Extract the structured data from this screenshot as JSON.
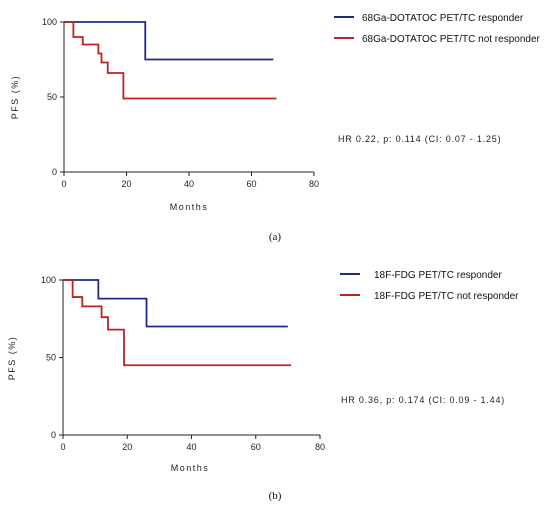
{
  "chart_data": [
    {
      "type": "line",
      "panel_label": "(a)",
      "xlabel": "Months",
      "ylabel": "PFS (%)",
      "xlim": [
        0,
        80
      ],
      "ylim": [
        0,
        100
      ],
      "xticks": [
        0,
        20,
        40,
        60,
        80
      ],
      "yticks": [
        0,
        50,
        100
      ],
      "annotation": "HR 0.22, p: 0.114 (CI: 0.07 - 1.25)",
      "legend_position": "top-right",
      "series": [
        {
          "name": "68Ga-DOTATOC PET/TC responder",
          "color": "#1f2a8a",
          "steps": [
            [
              0,
              100
            ],
            [
              26,
              100
            ],
            [
              26,
              75
            ],
            [
              67,
              75
            ]
          ]
        },
        {
          "name": "68Ga-DOTATOC PET/TC not responder",
          "color": "#c0221f",
          "steps": [
            [
              0,
              100
            ],
            [
              3,
              100
            ],
            [
              3,
              90
            ],
            [
              6,
              90
            ],
            [
              6,
              85
            ],
            [
              11,
              85
            ],
            [
              11,
              79
            ],
            [
              12,
              79
            ],
            [
              12,
              73
            ],
            [
              14,
              73
            ],
            [
              14,
              66
            ],
            [
              19,
              66
            ],
            [
              19,
              49
            ],
            [
              68,
              49
            ]
          ]
        }
      ]
    },
    {
      "type": "line",
      "panel_label": "(b)",
      "xlabel": "Months",
      "ylabel": "PFS (%)",
      "xlim": [
        0,
        80
      ],
      "ylim": [
        0,
        100
      ],
      "xticks": [
        0,
        20,
        40,
        60,
        80
      ],
      "yticks": [
        0,
        50,
        100
      ],
      "annotation": "HR 0.36, p: 0.174 (CI: 0.09 - 1.44)",
      "legend_position": "top-right",
      "series": [
        {
          "name": "18F-FDG PET/TC responder",
          "color": "#1f2a8a",
          "steps": [
            [
              0,
              100
            ],
            [
              11,
              100
            ],
            [
              11,
              88
            ],
            [
              26,
              88
            ],
            [
              26,
              70
            ],
            [
              70,
              70
            ]
          ]
        },
        {
          "name": "18F-FDG PET/TC not responder",
          "color": "#c0221f",
          "steps": [
            [
              0,
              100
            ],
            [
              3,
              100
            ],
            [
              3,
              89
            ],
            [
              6,
              89
            ],
            [
              6,
              83
            ],
            [
              12,
              83
            ],
            [
              12,
              76
            ],
            [
              14,
              76
            ],
            [
              14,
              68
            ],
            [
              19,
              68
            ],
            [
              19,
              45
            ],
            [
              71,
              45
            ]
          ]
        }
      ]
    }
  ]
}
